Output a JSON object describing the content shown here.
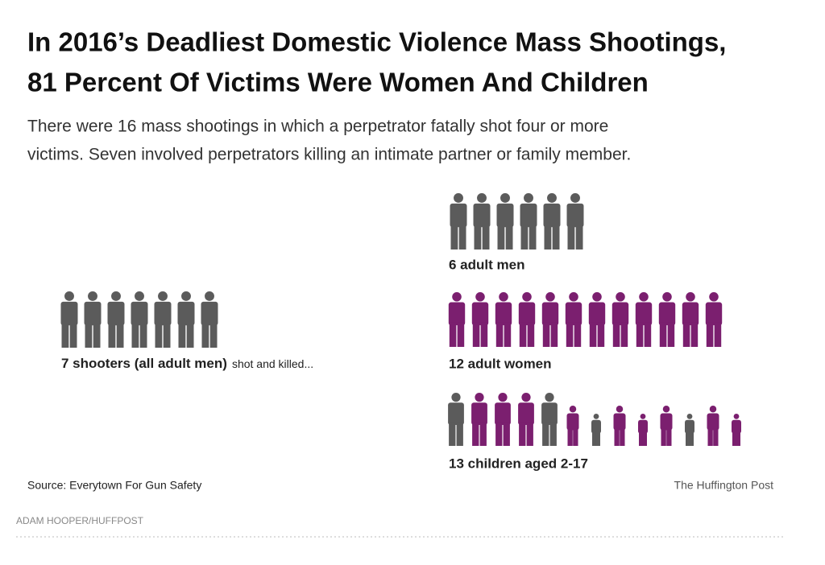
{
  "header": {
    "title_line1": "In 2016’s Deadliest Domestic Violence Mass Shootings,",
    "title_line2": "81 Percent Of Victims Were Women And Children",
    "subtitle_line1": "There were 16 mass shootings in which a perpetrator fatally shot four or more",
    "subtitle_line2": "victims. Seven involved perpetrators killing an intimate partner or family member."
  },
  "shooters": {
    "label": "7 shooters (all adult men)",
    "label_suffix": "shot and killed...",
    "icon_colors": [
      "#5b5b5b",
      "#5b5b5b",
      "#5b5b5b",
      "#5b5b5b",
      "#5b5b5b",
      "#5b5b5b",
      "#5b5b5b"
    ]
  },
  "victims": [
    {
      "label": "6 adult men",
      "icon_colors": [
        "#5b5b5b",
        "#5b5b5b",
        "#5b5b5b",
        "#5b5b5b",
        "#5b5b5b",
        "#5b5b5b"
      ]
    },
    {
      "label": "12 adult women",
      "icon_colors": [
        "#7b1f6f",
        "#7b1f6f",
        "#7b1f6f",
        "#7b1f6f",
        "#7b1f6f",
        "#7b1f6f",
        "#7b1f6f",
        "#7b1f6f",
        "#7b1f6f",
        "#7b1f6f",
        "#7b1f6f",
        "#7b1f6f"
      ]
    },
    {
      "label": "13 children aged 2-17",
      "icon_colors": [
        "#5b5b5b",
        "#7b1f6f",
        "#7b1f6f",
        "#7b1f6f",
        "#5b5b5b",
        "#7b1f6f",
        "#5b5b5b",
        "#7b1f6f",
        "#7b1f6f",
        "#7b1f6f",
        "#5b5b5b",
        "#7b1f6f",
        "#7b1f6f"
      ]
    }
  ],
  "footer": {
    "source": "Source: Everytown For Gun Safety",
    "publisher": "The Huffington Post",
    "credit": "ADAM HOOPER/HUFFPOST"
  }
}
